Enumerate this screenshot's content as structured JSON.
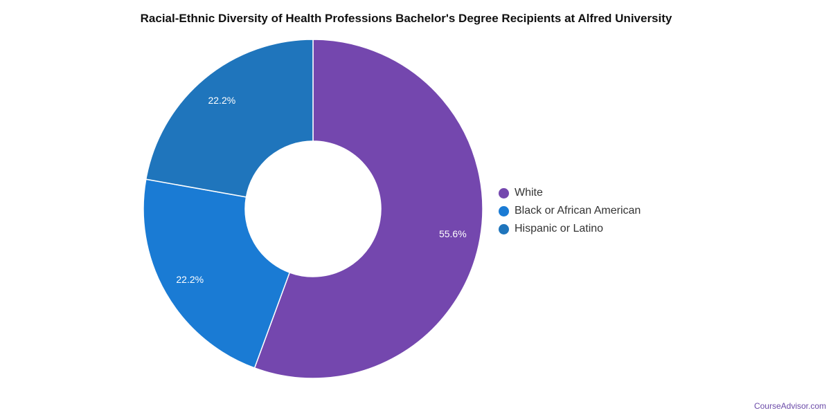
{
  "chart_data": {
    "type": "pie",
    "variant": "donut",
    "title": "Racial-Ethnic Diversity of Health Professions Bachelor's Degree Recipients at Alfred University",
    "categories": [
      "White",
      "Black or African American",
      "Hispanic or Latino"
    ],
    "values": [
      55.6,
      22.2,
      22.2
    ],
    "value_labels": [
      "55.6%",
      "22.2%",
      "22.2%"
    ],
    "colors": [
      "#7447ae",
      "#1a7bd4",
      "#1f75bc"
    ],
    "legend_placement": "right"
  },
  "credit": "CourseAdvisor.com"
}
